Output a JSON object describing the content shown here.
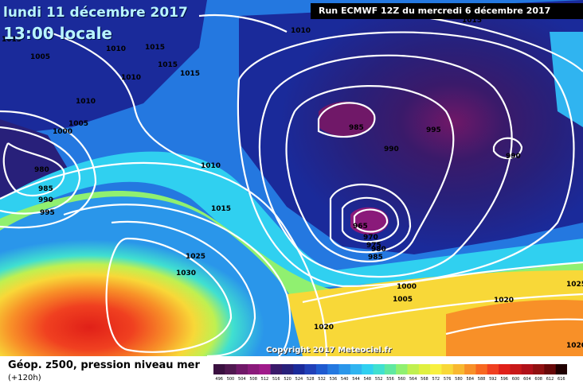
{
  "header": {
    "date": "lundi 11 décembre 2017",
    "time": "13:00 locale",
    "run": "Run ECMWF 12Z du mercredi 6 décembre 2017"
  },
  "copyright": "Copyright 2017 Meteociel.fr",
  "legend": {
    "title": "Géop. z500, pression niveau mer",
    "subtitle": "(+120h)",
    "ticks": [
      "496",
      "500",
      "504",
      "508",
      "512",
      "516",
      "520",
      "524",
      "528",
      "532",
      "536",
      "540",
      "544",
      "548",
      "552",
      "556",
      "560",
      "564",
      "568",
      "572",
      "576",
      "580",
      "584",
      "588",
      "592",
      "596",
      "600",
      "604",
      "608",
      "612",
      "616"
    ],
    "colors": [
      "#3a1040",
      "#501850",
      "#701868",
      "#8a1a7a",
      "#a01a8a",
      "#3a1a6a",
      "#28207a",
      "#1a2a9a",
      "#2040b8",
      "#1e5ad0",
      "#2478e0",
      "#2a96ea",
      "#30b4f0",
      "#30d0f0",
      "#40e0d0",
      "#60e8a0",
      "#90f070",
      "#c0f050",
      "#e0f040",
      "#f8f040",
      "#f8d838",
      "#f8b830",
      "#f89028",
      "#f86820",
      "#f04020",
      "#e02018",
      "#c81818",
      "#b01018",
      "#901010",
      "#680808",
      "#200000"
    ]
  },
  "isobars": [
    {
      "label": "1015",
      "cls": "tl"
    },
    {
      "label": "1005",
      "cls": "a"
    },
    {
      "label": "1010",
      "cls": "b"
    },
    {
      "label": "1015",
      "cls": "c"
    },
    {
      "label": "1015",
      "cls": "d"
    },
    {
      "label": "1015",
      "cls": "e"
    },
    {
      "label": "1010",
      "cls": "f"
    },
    {
      "label": "1010",
      "cls": "g"
    },
    {
      "label": "1005",
      "cls": "h"
    },
    {
      "label": "1000",
      "cls": "i"
    },
    {
      "label": "980",
      "cls": "j"
    },
    {
      "label": "985",
      "cls": "k"
    },
    {
      "label": "990",
      "cls": "l"
    },
    {
      "label": "995",
      "cls": "m"
    },
    {
      "label": "1010",
      "cls": "n"
    },
    {
      "label": "1015",
      "cls": "o"
    },
    {
      "label": "1025",
      "cls": "p"
    },
    {
      "label": "1030",
      "cls": "q"
    },
    {
      "label": "1010",
      "cls": "r"
    },
    {
      "label": "985",
      "cls": "s"
    },
    {
      "label": "990",
      "cls": "t"
    },
    {
      "label": "995",
      "cls": "u"
    },
    {
      "label": "990",
      "cls": "v"
    },
    {
      "label": "965",
      "cls": "w"
    },
    {
      "label": "970",
      "cls": "x"
    },
    {
      "label": "975",
      "cls": "y"
    },
    {
      "label": "980",
      "cls": "z"
    },
    {
      "label": "985",
      "cls": "aa"
    },
    {
      "label": "1000",
      "cls": "bb"
    },
    {
      "label": "1005",
      "cls": "cc"
    },
    {
      "label": "1020",
      "cls": "dd"
    },
    {
      "label": "1020",
      "cls": "ee"
    },
    {
      "label": "1025",
      "cls": "ff"
    },
    {
      "label": "1020",
      "cls": "gg"
    },
    {
      "label": "1015",
      "cls": "hh"
    }
  ]
}
